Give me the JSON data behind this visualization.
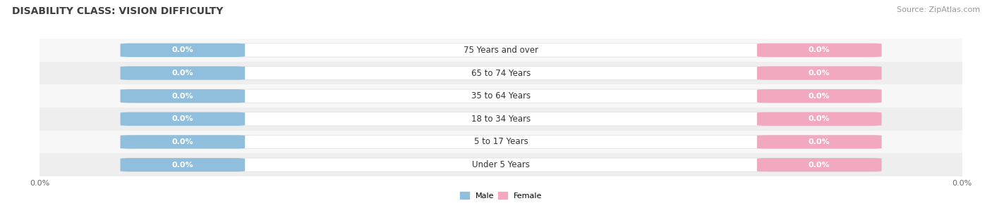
{
  "title": "DISABILITY CLASS: VISION DIFFICULTY",
  "source": "Source: ZipAtlas.com",
  "categories": [
    "Under 5 Years",
    "5 to 17 Years",
    "18 to 34 Years",
    "35 to 64 Years",
    "65 to 74 Years",
    "75 Years and over"
  ],
  "male_values": [
    0.0,
    0.0,
    0.0,
    0.0,
    0.0,
    0.0
  ],
  "female_values": [
    0.0,
    0.0,
    0.0,
    0.0,
    0.0,
    0.0
  ],
  "male_color": "#8fbfdc",
  "female_color": "#f2a8be",
  "row_bg_color": "#eeeeee",
  "row_stripe_color": "#f7f7f7",
  "title_color": "#404040",
  "source_color": "#999999",
  "label_text_color": "#ffffff",
  "category_label_color": "#333333",
  "tick_label_color": "#666666",
  "background_color": "#ffffff",
  "axis_label_left": "0.0%",
  "axis_label_right": "0.0%",
  "title_fontsize": 10,
  "source_fontsize": 8,
  "tick_fontsize": 8,
  "label_fontsize": 8,
  "category_fontsize": 8.5,
  "legend_fontsize": 8
}
